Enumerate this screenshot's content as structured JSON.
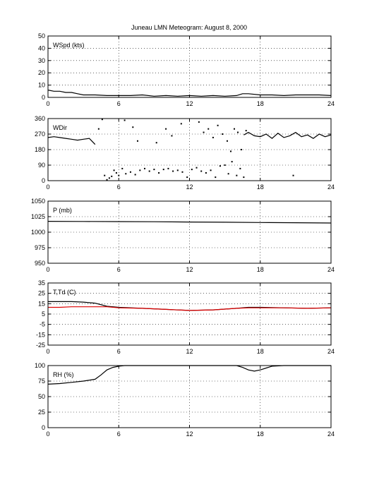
{
  "title": "Juneau LMN Meteogram:     August  8, 2000",
  "chart_data": [
    {
      "type": "line",
      "label": "WSpd (kts)",
      "xlim": [
        0,
        24
      ],
      "xticks": [
        0,
        6,
        12,
        18,
        24
      ],
      "ylim": [
        0,
        50
      ],
      "yticks": [
        0,
        10,
        20,
        30,
        40,
        50
      ],
      "grid": true,
      "series": [
        {
          "color": "#000000",
          "style": "line",
          "x": [
            0,
            0.5,
            1,
            1.5,
            2,
            2.5,
            3,
            4,
            5,
            6,
            7,
            8,
            9,
            10,
            11,
            12,
            13,
            14,
            15,
            16,
            16.5,
            17,
            18,
            19,
            20,
            21,
            22,
            23,
            24
          ],
          "y": [
            6,
            5,
            5,
            4,
            4,
            3,
            2,
            2,
            1.5,
            1.5,
            1.5,
            2,
            1,
            1.5,
            1,
            1.5,
            1,
            1.5,
            1,
            1.5,
            3,
            3,
            2,
            2,
            1.5,
            2,
            2,
            2,
            1.5
          ]
        }
      ]
    },
    {
      "type": "scatter",
      "label": "WDir",
      "xlim": [
        0,
        24
      ],
      "xticks": [
        0,
        6,
        12,
        18,
        24
      ],
      "ylim": [
        0,
        360
      ],
      "yticks": [
        0,
        90,
        180,
        270,
        360
      ],
      "grid": true,
      "series": [
        {
          "color": "#000000",
          "style": "line",
          "x": [
            0,
            0.5,
            1,
            1.5,
            2,
            2.5,
            3,
            3.5,
            4
          ],
          "y": [
            250,
            255,
            250,
            245,
            240,
            235,
            240,
            245,
            210
          ]
        },
        {
          "color": "#000000",
          "style": "points",
          "x": [
            4.3,
            4.6,
            4.8,
            5,
            5.2,
            5.4,
            5.6,
            5.8,
            6,
            6.3,
            6.6,
            7,
            7.4,
            7.8,
            8.2,
            8.6,
            9,
            9.4,
            9.8,
            10.2,
            10.6,
            11,
            11.4,
            11.8,
            12.2,
            12.6,
            13,
            13.4,
            13.8,
            14.2,
            14.6,
            15,
            15.3,
            15.6,
            16,
            16.3,
            16.6
          ],
          "y": [
            300,
            355,
            30,
            5,
            15,
            25,
            60,
            45,
            30,
            70,
            40,
            50,
            35,
            60,
            70,
            55,
            65,
            45,
            65,
            70,
            55,
            60,
            50,
            20,
            65,
            75,
            55,
            45,
            60,
            20,
            85,
            90,
            40,
            110,
            30,
            70,
            20
          ]
        },
        {
          "color": "#000000",
          "style": "points",
          "x": [
            6.5,
            7.2,
            7.6,
            9.2,
            10,
            10.5,
            11.3,
            12.8,
            13.2,
            13.6,
            14,
            14.4,
            14.8,
            15.2,
            15.5,
            15.8,
            16.1,
            16.4,
            16.8,
            20.8
          ],
          "y": [
            350,
            310,
            230,
            220,
            300,
            260,
            330,
            340,
            280,
            300,
            250,
            320,
            270,
            230,
            170,
            300,
            280,
            180,
            290,
            30
          ]
        },
        {
          "color": "#000000",
          "style": "line",
          "x": [
            16.6,
            17,
            17.5,
            18,
            18.5,
            19,
            19.5,
            20,
            20.5,
            21,
            21.5,
            22,
            22.5,
            23,
            23.5,
            24
          ],
          "y": [
            265,
            280,
            260,
            255,
            270,
            245,
            275,
            250,
            260,
            280,
            255,
            265,
            245,
            270,
            255,
            265
          ]
        }
      ]
    },
    {
      "type": "line",
      "label": "P (mb)",
      "xlim": [
        0,
        24
      ],
      "xticks": [
        0,
        6,
        12,
        18,
        24
      ],
      "ylim": [
        950,
        1050
      ],
      "yticks": [
        950,
        975,
        1000,
        1025,
        1050
      ],
      "grid": true,
      "series": [
        {
          "color": "#000000",
          "style": "line",
          "x": [
            0,
            3,
            6,
            9,
            12,
            15,
            18,
            21,
            24
          ],
          "y": [
            1017.5,
            1017.3,
            1017,
            1016.8,
            1016.4,
            1016,
            1015.6,
            1015.2,
            1014.8
          ]
        }
      ]
    },
    {
      "type": "line",
      "label": "T,Td (C)",
      "xlim": [
        0,
        24
      ],
      "xticks": [
        0,
        6,
        12,
        18,
        24
      ],
      "ylim": [
        -25,
        35
      ],
      "yticks": [
        -25,
        -15,
        -5,
        5,
        15,
        25,
        35
      ],
      "grid": true,
      "series": [
        {
          "color": "#000000",
          "style": "line",
          "x": [
            0,
            1,
            2,
            3,
            4,
            5,
            6,
            8,
            10,
            12,
            14,
            16,
            17,
            18,
            20,
            22,
            24
          ],
          "y": [
            17,
            17,
            17,
            16.5,
            15.5,
            12.5,
            11.5,
            10.5,
            9.5,
            8.5,
            9,
            10.5,
            11.5,
            11.5,
            11,
            10.5,
            11
          ]
        },
        {
          "color": "#dd0000",
          "style": "line",
          "x": [
            0,
            1,
            2,
            3,
            4,
            5,
            6,
            8,
            10,
            12,
            14,
            16,
            17,
            18,
            20,
            22,
            24
          ],
          "y": [
            11.5,
            11.5,
            12,
            12,
            12,
            12,
            11,
            10.5,
            9.5,
            8.5,
            9,
            10.5,
            11,
            11,
            11,
            10.5,
            11
          ]
        }
      ]
    },
    {
      "type": "line",
      "label": "RH (%)",
      "xlim": [
        0,
        24
      ],
      "xticks": [
        0,
        6,
        12,
        18,
        24
      ],
      "ylim": [
        0,
        100
      ],
      "yticks": [
        0,
        25,
        50,
        75,
        100
      ],
      "grid": true,
      "series": [
        {
          "color": "#000000",
          "style": "line",
          "x": [
            0,
            1,
            2,
            3,
            4,
            4.5,
            5,
            5.5,
            6,
            6.5,
            7,
            8,
            10,
            12,
            14,
            16,
            16.5,
            17,
            17.5,
            18,
            18.5,
            19,
            20,
            22,
            24
          ],
          "y": [
            70,
            71,
            73,
            75,
            78,
            85,
            93,
            97,
            99,
            100,
            100,
            100,
            100,
            100,
            100,
            100,
            97,
            93,
            91,
            93,
            96,
            99,
            100,
            100,
            100
          ]
        }
      ]
    }
  ]
}
